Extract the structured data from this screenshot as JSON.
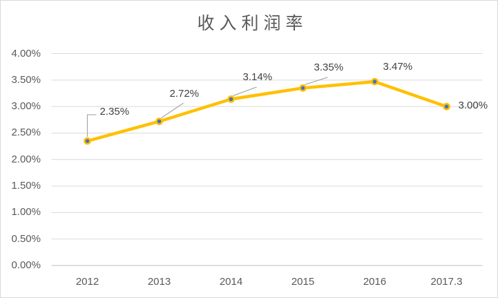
{
  "chart_data": {
    "type": "line",
    "title": "收入利润率",
    "categories": [
      "2012",
      "2013",
      "2014",
      "2015",
      "2016",
      "2017.3"
    ],
    "series": [
      {
        "name": "收入利润率",
        "values": [
          2.35,
          2.72,
          3.14,
          3.35,
          3.47,
          3.0
        ]
      }
    ],
    "data_labels": [
      "2.35%",
      "2.72%",
      "3.14%",
      "3.35%",
      "3.47%",
      "3.00%"
    ],
    "y_ticks": [
      {
        "label": "0.00%",
        "value": 0.0
      },
      {
        "label": "0.50%",
        "value": 0.5
      },
      {
        "label": "1.00%",
        "value": 1.0
      },
      {
        "label": "1.50%",
        "value": 1.5
      },
      {
        "label": "2.00%",
        "value": 2.0
      },
      {
        "label": "2.50%",
        "value": 2.5
      },
      {
        "label": "3.00%",
        "value": 3.0
      },
      {
        "label": "3.50%",
        "value": 3.5
      },
      {
        "label": "4.00%",
        "value": 4.0
      }
    ],
    "ylim": [
      0,
      4
    ],
    "xlabel": "",
    "ylabel": "",
    "grid": true,
    "legend": "none",
    "colors": {
      "line": "#FFC000",
      "marker": "#4472C4",
      "marker_ring": "#FFC000",
      "gridline": "#D9D9D9",
      "axis_line": "#BFBFBF",
      "axis_text": "#595959",
      "data_label_text": "#404040",
      "leader_line": "#A6A6A6",
      "border": "#D9D9D9",
      "background": "#FFFFFF"
    }
  }
}
